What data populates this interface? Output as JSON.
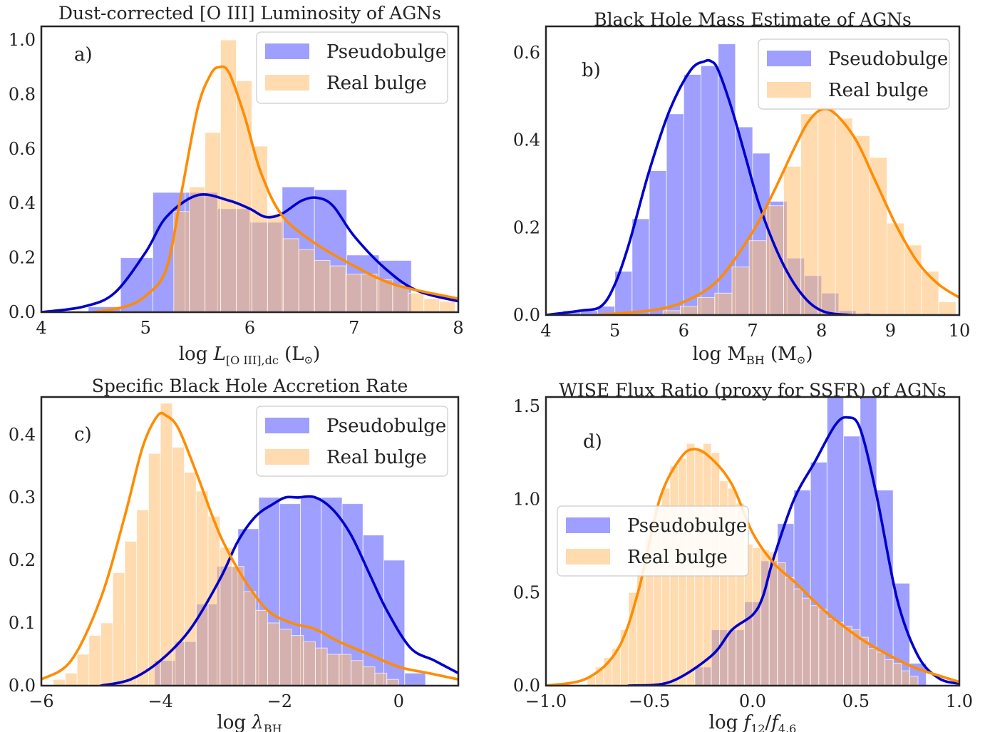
{
  "chart_data": [
    {
      "type": "histogram+kde",
      "panel_letter": "a)",
      "title": "Dust-corrected [O III] Luminosity of AGNs",
      "xlabel": "log L[O III],dc (L⊙)",
      "xlabel_parts": {
        "pre": "log ",
        "var": "L",
        "sub": "[O III],dc",
        "post": " (L",
        "sun": "⊙",
        "close": ")"
      },
      "xlim": [
        4,
        8
      ],
      "ylim": [
        0,
        1.05
      ],
      "xticks": [
        4,
        5,
        6,
        7,
        8
      ],
      "xtick_labels": [
        "4",
        "5",
        "6",
        "7",
        "8"
      ],
      "yticks": [
        0,
        0.2,
        0.4,
        0.6,
        0.8,
        1.0
      ],
      "ytick_labels": [
        "0.0",
        "0.2",
        "0.4",
        "0.6",
        "0.8",
        "1.0"
      ],
      "legend": {
        "position": "top-right",
        "entries": [
          "Pseudobulge",
          "Real bulge"
        ]
      },
      "series": [
        {
          "name": "Pseudobulge",
          "color": "#6b6bff",
          "bin_edges": [
            4.45,
            4.76,
            5.07,
            5.38,
            5.69,
            6.0,
            6.31,
            6.62,
            6.93,
            7.24,
            7.55
          ],
          "values": [
            0.02,
            0.2,
            0.44,
            0.44,
            0.38,
            0.33,
            0.46,
            0.45,
            0.21,
            0.19
          ]
        },
        {
          "name": "Real bulge",
          "color": "#ffbe6e",
          "bin_edges": [
            5.27,
            5.42,
            5.57,
            5.72,
            5.87,
            6.02,
            6.17,
            6.32,
            6.47,
            6.62,
            6.77,
            6.92,
            7.07,
            7.22,
            7.37,
            7.52,
            7.67,
            7.82,
            7.97
          ],
          "values": [
            0.37,
            0.46,
            0.66,
            1.0,
            0.85,
            0.61,
            0.36,
            0.27,
            0.23,
            0.19,
            0.17,
            0.14,
            0.14,
            0.12,
            0.1,
            0.07,
            0.05,
            0.04
          ]
        }
      ],
      "kde": [
        {
          "name": "Pseudobulge",
          "color": "#0000cc",
          "x": [
            4.0,
            4.4,
            4.7,
            5.0,
            5.2,
            5.5,
            5.8,
            6.0,
            6.15,
            6.3,
            6.5,
            6.65,
            6.8,
            7.0,
            7.3,
            7.6,
            8.0
          ],
          "y": [
            0.0,
            0.02,
            0.07,
            0.22,
            0.35,
            0.43,
            0.41,
            0.38,
            0.35,
            0.36,
            0.41,
            0.42,
            0.39,
            0.28,
            0.16,
            0.08,
            0.04
          ]
        },
        {
          "name": "Real bulge",
          "color": "#ff8c00",
          "x": [
            4.5,
            4.8,
            5.0,
            5.2,
            5.35,
            5.5,
            5.62,
            5.7,
            5.8,
            5.95,
            6.1,
            6.3,
            6.6,
            7.0,
            7.4,
            8.0
          ],
          "y": [
            0.0,
            0.02,
            0.06,
            0.16,
            0.45,
            0.75,
            0.87,
            0.9,
            0.88,
            0.72,
            0.52,
            0.36,
            0.26,
            0.17,
            0.1,
            0.05
          ]
        }
      ]
    },
    {
      "type": "histogram+kde",
      "panel_letter": "b)",
      "title": "Black Hole Mass Estimate of AGNs",
      "xlabel": "log MBH (M⊙)",
      "xlabel_parts": {
        "pre": "log M",
        "sub": "BH",
        "post": " (M",
        "sun": "⊙",
        "close": ")"
      },
      "xlim": [
        4,
        10
      ],
      "ylim": [
        0,
        0.66
      ],
      "xticks": [
        4,
        5,
        6,
        7,
        8,
        9,
        10
      ],
      "xtick_labels": [
        "4",
        "5",
        "6",
        "7",
        "8",
        "9",
        "10"
      ],
      "yticks": [
        0,
        0.2,
        0.4,
        0.6
      ],
      "ytick_labels": [
        "0.0",
        "0.2",
        "0.4",
        "0.6"
      ],
      "legend": {
        "position": "top-right",
        "entries": [
          "Pseudobulge",
          "Real bulge"
        ]
      },
      "series": [
        {
          "name": "Pseudobulge",
          "color": "#6b6bff",
          "bin_edges": [
            4.25,
            4.5,
            4.75,
            5.0,
            5.25,
            5.5,
            5.75,
            6.0,
            6.25,
            6.5,
            6.75,
            7.0,
            7.25,
            7.5,
            7.75,
            8.0,
            8.25,
            8.5
          ],
          "values": [
            0.01,
            0.01,
            0.02,
            0.1,
            0.22,
            0.33,
            0.46,
            0.55,
            0.57,
            0.62,
            0.43,
            0.37,
            0.26,
            0.13,
            0.09,
            0.05,
            0.01
          ]
        },
        {
          "name": "Real bulge",
          "color": "#ffbe6e",
          "bin_edges": [
            5.7,
            5.95,
            6.2,
            6.45,
            6.7,
            6.95,
            7.2,
            7.45,
            7.7,
            7.95,
            8.2,
            8.45,
            8.7,
            8.95,
            9.2,
            9.45,
            9.7,
            9.95
          ],
          "values": [
            0.01,
            0.02,
            0.04,
            0.05,
            0.11,
            0.17,
            0.25,
            0.34,
            0.46,
            0.48,
            0.45,
            0.41,
            0.36,
            0.21,
            0.16,
            0.1,
            0.03
          ]
        }
      ],
      "kde": [
        {
          "name": "Pseudobulge",
          "color": "#0000cc",
          "x": [
            4.0,
            4.5,
            4.8,
            5.0,
            5.2,
            5.5,
            5.8,
            6.1,
            6.3,
            6.4,
            6.5,
            6.7,
            6.9,
            7.1,
            7.4,
            7.7,
            8.0,
            8.4,
            8.7
          ],
          "y": [
            0.0,
            0.01,
            0.02,
            0.07,
            0.16,
            0.33,
            0.47,
            0.56,
            0.58,
            0.58,
            0.56,
            0.47,
            0.36,
            0.25,
            0.13,
            0.05,
            0.01,
            0.0,
            0.0
          ]
        },
        {
          "name": "Real bulge",
          "color": "#ff8c00",
          "x": [
            4.7,
            5.5,
            6.0,
            6.5,
            7.0,
            7.3,
            7.6,
            7.8,
            8.0,
            8.2,
            8.5,
            8.8,
            9.1,
            9.4,
            9.7,
            10.0
          ],
          "y": [
            0.0,
            0.01,
            0.03,
            0.08,
            0.19,
            0.28,
            0.38,
            0.44,
            0.47,
            0.46,
            0.4,
            0.3,
            0.2,
            0.12,
            0.07,
            0.04
          ]
        }
      ]
    },
    {
      "type": "histogram+kde",
      "panel_letter": "c)",
      "title": "Specific Black Hole Accretion Rate",
      "xlabel": "log λBH",
      "xlabel_parts": {
        "pre": "log ",
        "var": "λ",
        "sub": "BH"
      },
      "xlim": [
        -6,
        1
      ],
      "ylim": [
        0,
        0.46
      ],
      "xticks": [
        -6,
        -4,
        -2,
        0
      ],
      "xtick_labels": [
        "−6",
        "−4",
        "−2",
        "0"
      ],
      "yticks": [
        0,
        0.1,
        0.2,
        0.3,
        0.4
      ],
      "ytick_labels": [
        "0.0",
        "0.1",
        "0.2",
        "0.3",
        "0.4"
      ],
      "legend": {
        "position": "top-right",
        "entries": [
          "Pseudobulge",
          "Real bulge"
        ]
      },
      "series": [
        {
          "name": "Pseudobulge",
          "color": "#6b6bff",
          "bin_edges": [
            -4.1,
            -3.75,
            -3.4,
            -3.05,
            -2.7,
            -2.35,
            -2.0,
            -1.65,
            -1.3,
            -0.95,
            -0.6,
            -0.25,
            0.1,
            0.45
          ],
          "values": [
            0.04,
            0.07,
            0.13,
            0.19,
            0.25,
            0.3,
            0.29,
            0.3,
            0.3,
            0.29,
            0.24,
            0.2,
            0.02
          ]
        },
        {
          "name": "Real bulge",
          "color": "#ffbe6e",
          "bin_edges": [
            -5.8,
            -5.6,
            -5.4,
            -5.2,
            -5.0,
            -4.8,
            -4.6,
            -4.4,
            -4.2,
            -4.0,
            -3.8,
            -3.6,
            -3.4,
            -3.2,
            -3.0,
            -2.8,
            -2.6,
            -2.4,
            -2.2,
            -2.0,
            -1.8,
            -1.6,
            -1.4,
            -1.2,
            -1.0,
            -0.8,
            -0.6,
            -0.4,
            -0.2,
            0.0
          ],
          "values": [
            0.01,
            0.02,
            0.05,
            0.08,
            0.1,
            0.18,
            0.23,
            0.28,
            0.37,
            0.45,
            0.38,
            0.34,
            0.31,
            0.27,
            0.22,
            0.19,
            0.15,
            0.12,
            0.1,
            0.09,
            0.08,
            0.07,
            0.06,
            0.05,
            0.05,
            0.04,
            0.03,
            0.02,
            0.01
          ]
        }
      ],
      "kde": [
        {
          "name": "Pseudobulge",
          "color": "#0000cc",
          "x": [
            -5.0,
            -4.5,
            -4.0,
            -3.5,
            -3.0,
            -2.7,
            -2.4,
            -2.1,
            -1.9,
            -1.7,
            -1.4,
            -1.1,
            -0.8,
            -0.5,
            -0.2,
            0.2,
            0.6,
            1.0
          ],
          "y": [
            0.0,
            0.01,
            0.04,
            0.09,
            0.17,
            0.23,
            0.27,
            0.29,
            0.3,
            0.3,
            0.3,
            0.28,
            0.24,
            0.18,
            0.12,
            0.06,
            0.04,
            0.02
          ]
        },
        {
          "name": "Real bulge",
          "color": "#ff8c00",
          "x": [
            -6.0,
            -5.5,
            -5.0,
            -4.6,
            -4.3,
            -4.05,
            -3.9,
            -3.7,
            -3.4,
            -3.0,
            -2.6,
            -2.2,
            -1.8,
            -1.4,
            -1.0,
            -0.5,
            0.0,
            0.5,
            1.0
          ],
          "y": [
            0.01,
            0.04,
            0.14,
            0.27,
            0.38,
            0.43,
            0.43,
            0.41,
            0.34,
            0.24,
            0.17,
            0.12,
            0.1,
            0.09,
            0.07,
            0.05,
            0.03,
            0.02,
            0.01
          ]
        }
      ]
    },
    {
      "type": "histogram+kde",
      "panel_letter": "d)",
      "title": "WISE Flux Ratio (proxy for SSFR) of AGNs",
      "xlabel": "log f12/f4.6",
      "xlabel_parts": {
        "pre": "log ",
        "var": "f",
        "sub": "12",
        "slash": "/",
        "var2": "f",
        "sub2": "4.6"
      },
      "xlim": [
        -1.0,
        1.0
      ],
      "ylim": [
        0,
        1.55
      ],
      "xticks": [
        -1.0,
        -0.5,
        0.0,
        0.5,
        1.0
      ],
      "xtick_labels": [
        "−1.0",
        "−0.5",
        "0.0",
        "0.5",
        "1.0"
      ],
      "yticks": [
        0,
        0.5,
        1.0,
        1.5
      ],
      "ytick_labels": [
        "0.0",
        "0.5",
        "1.0",
        "1.5"
      ],
      "legend": {
        "position": "center-left",
        "entries": [
          "Pseudobulge",
          "Real bulge"
        ]
      },
      "series": [
        {
          "name": "Pseudobulge",
          "color": "#6b6bff",
          "bin_edges": [
            -0.28,
            -0.2,
            -0.12,
            -0.04,
            0.04,
            0.12,
            0.2,
            0.28,
            0.36,
            0.44,
            0.52,
            0.6,
            0.68,
            0.76,
            0.84
          ],
          "values": [
            0.1,
            0.3,
            0.3,
            0.45,
            0.67,
            0.87,
            1.05,
            1.2,
            1.57,
            1.34,
            1.57,
            1.05,
            0.55,
            0.12
          ]
        },
        {
          "name": "Real bulge",
          "color": "#ffbe6e",
          "bin_edges": [
            -0.8,
            -0.76,
            -0.72,
            -0.68,
            -0.64,
            -0.6,
            -0.56,
            -0.52,
            -0.48,
            -0.44,
            -0.4,
            -0.36,
            -0.32,
            -0.28,
            -0.24,
            -0.2,
            -0.16,
            -0.12,
            -0.08,
            -0.04,
            0.0,
            0.04,
            0.08,
            0.12,
            0.16,
            0.2,
            0.24,
            0.28,
            0.32,
            0.36,
            0.4,
            0.44,
            0.48,
            0.52,
            0.56,
            0.6,
            0.64,
            0.68,
            0.72,
            0.76,
            0.8
          ],
          "values": [
            0.05,
            0.1,
            0.15,
            0.2,
            0.3,
            0.5,
            0.62,
            0.8,
            0.96,
            1.06,
            1.18,
            1.22,
            1.3,
            1.27,
            1.3,
            1.25,
            1.1,
            1.06,
            0.98,
            0.76,
            0.74,
            0.73,
            0.72,
            0.66,
            0.58,
            0.52,
            0.47,
            0.43,
            0.41,
            0.36,
            0.34,
            0.32,
            0.3,
            0.26,
            0.2,
            0.18,
            0.14,
            0.12,
            0.08,
            0.05
          ]
        }
      ],
      "kde": [
        {
          "name": "Pseudobulge",
          "color": "#0000cc",
          "x": [
            -0.6,
            -0.4,
            -0.2,
            -0.1,
            0.0,
            0.05,
            0.1,
            0.2,
            0.3,
            0.4,
            0.46,
            0.52,
            0.6,
            0.7,
            0.8,
            0.9,
            1.0
          ],
          "y": [
            0.0,
            0.02,
            0.16,
            0.3,
            0.38,
            0.48,
            0.68,
            1.0,
            1.2,
            1.4,
            1.44,
            1.38,
            1.02,
            0.46,
            0.16,
            0.04,
            0.01
          ]
        },
        {
          "name": "Real bulge",
          "color": "#ff8c00",
          "x": [
            -1.0,
            -0.8,
            -0.65,
            -0.55,
            -0.45,
            -0.35,
            -0.28,
            -0.2,
            -0.1,
            0.0,
            0.1,
            0.2,
            0.35,
            0.5,
            0.6,
            0.7,
            0.8,
            1.0
          ],
          "y": [
            0.0,
            0.04,
            0.2,
            0.52,
            1.0,
            1.22,
            1.27,
            1.22,
            1.08,
            0.82,
            0.66,
            0.56,
            0.4,
            0.27,
            0.2,
            0.14,
            0.09,
            0.02
          ]
        }
      ]
    }
  ]
}
